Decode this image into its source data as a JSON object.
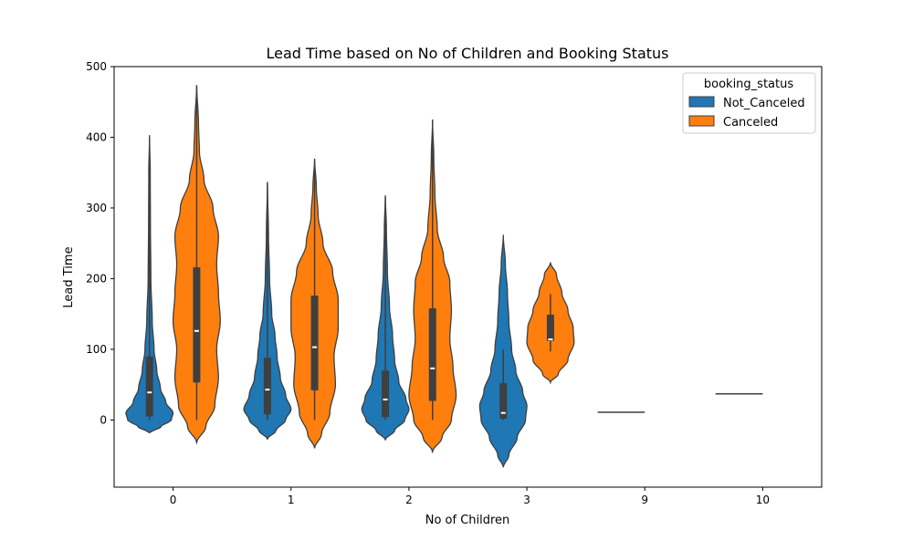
{
  "chart_data": {
    "type": "violin",
    "title": "Lead Time based on No of Children and Booking Status",
    "xlabel": "No of Children",
    "ylabel": "Lead Time",
    "ylim": [
      -95,
      500
    ],
    "yticks": [
      0,
      100,
      200,
      300,
      400,
      500
    ],
    "categories": [
      "0",
      "1",
      "2",
      "3",
      "9",
      "10"
    ],
    "grid": false,
    "legend": {
      "title": "booking_status",
      "placement": "top-right",
      "entries": [
        {
          "name": "Not_Canceled",
          "color": "#1f77b4"
        },
        {
          "name": "Canceled",
          "color": "#ff7f0e"
        }
      ]
    },
    "series": [
      {
        "name": "Not_Canceled",
        "color": "#1f77b4",
        "groups": [
          {
            "category": "0",
            "min": 0,
            "q1": 5,
            "median": 39,
            "q3": 90,
            "max": 400,
            "kde_min": -18,
            "kde_max": 403,
            "profile": [
              [
                -18,
                0
              ],
              [
                -10,
                12
              ],
              [
                0,
                24
              ],
              [
                10,
                26
              ],
              [
                25,
                18
              ],
              [
                45,
                12
              ],
              [
                70,
                8
              ],
              [
                100,
                5
              ],
              [
                140,
                3
              ],
              [
                200,
                1.5
              ],
              [
                280,
                1
              ],
              [
                350,
                0.8
              ],
              [
                403,
                0
              ]
            ]
          },
          {
            "category": "1",
            "min": 0,
            "q1": 8,
            "median": 43,
            "q3": 88,
            "max": 335,
            "kde_min": -27,
            "kde_max": 337,
            "profile": [
              [
                -27,
                0
              ],
              [
                -15,
                8
              ],
              [
                0,
                17
              ],
              [
                15,
                22
              ],
              [
                35,
                17
              ],
              [
                60,
                12
              ],
              [
                90,
                9
              ],
              [
                120,
                7
              ],
              [
                150,
                4
              ],
              [
                200,
                2
              ],
              [
                260,
                1
              ],
              [
                337,
                0
              ]
            ]
          },
          {
            "category": "2",
            "min": 0,
            "q1": 4,
            "median": 29,
            "q3": 70,
            "max": 315,
            "kde_min": -28,
            "kde_max": 318,
            "profile": [
              [
                -28,
                0
              ],
              [
                -15,
                9
              ],
              [
                0,
                19
              ],
              [
                15,
                23
              ],
              [
                30,
                20
              ],
              [
                55,
                13
              ],
              [
                85,
                9
              ],
              [
                120,
                7
              ],
              [
                160,
                4
              ],
              [
                210,
                2
              ],
              [
                270,
                1
              ],
              [
                318,
                0
              ]
            ]
          },
          {
            "category": "3",
            "min": 0,
            "q1": 2,
            "median": 10,
            "q3": 52,
            "max": 100,
            "kde_min": -67,
            "kde_max": 262,
            "profile": [
              [
                -67,
                0
              ],
              [
                -50,
                4
              ],
              [
                -25,
                10
              ],
              [
                0,
                16
              ],
              [
                20,
                17
              ],
              [
                40,
                14
              ],
              [
                70,
                9
              ],
              [
                100,
                6
              ],
              [
                140,
                4
              ],
              [
                180,
                3
              ],
              [
                220,
                1.5
              ],
              [
                262,
                0
              ]
            ]
          },
          {
            "category": "9",
            "min": 11,
            "q1": 11,
            "median": 11,
            "q3": 11,
            "max": 11,
            "single": true
          },
          {
            "category": "10",
            "min": 37,
            "q1": 37,
            "median": 37,
            "q3": 37,
            "max": 37,
            "single": true
          }
        ]
      },
      {
        "name": "Canceled",
        "color": "#ff7f0e",
        "groups": [
          {
            "category": "0",
            "min": 0,
            "q1": 53,
            "median": 126,
            "q3": 216,
            "max": 472,
            "kde_min": -32,
            "kde_max": 474,
            "profile": [
              [
                -32,
                0
              ],
              [
                -10,
                5
              ],
              [
                20,
                10
              ],
              [
                60,
                12
              ],
              [
                100,
                11
              ],
              [
                140,
                13
              ],
              [
                180,
                12
              ],
              [
                220,
                11
              ],
              [
                260,
                12
              ],
              [
                300,
                9
              ],
              [
                340,
                4
              ],
              [
                380,
                1.5
              ],
              [
                420,
                1
              ],
              [
                474,
                0
              ]
            ]
          },
          {
            "category": "1",
            "min": 0,
            "q1": 42,
            "median": 103,
            "q3": 176,
            "max": 368,
            "kde_min": -40,
            "kde_max": 370,
            "profile": [
              [
                -40,
                0
              ],
              [
                -20,
                5
              ],
              [
                10,
                11
              ],
              [
                50,
                15
              ],
              [
                90,
                14
              ],
              [
                130,
                17
              ],
              [
                170,
                17
              ],
              [
                210,
                13
              ],
              [
                250,
                6
              ],
              [
                290,
                2.5
              ],
              [
                330,
                1.2
              ],
              [
                370,
                0
              ]
            ]
          },
          {
            "category": "2",
            "min": 0,
            "q1": 27,
            "median": 73,
            "q3": 158,
            "max": 425,
            "kde_min": -45,
            "kde_max": 425,
            "profile": [
              [
                -45,
                0
              ],
              [
                -25,
                6
              ],
              [
                0,
                12
              ],
              [
                35,
                15
              ],
              [
                75,
                13
              ],
              [
                115,
                11
              ],
              [
                155,
                12
              ],
              [
                195,
                11
              ],
              [
                230,
                7
              ],
              [
                270,
                3
              ],
              [
                320,
                1.5
              ],
              [
                370,
                0.8
              ],
              [
                425,
                0
              ]
            ]
          },
          {
            "category": "3",
            "min": 97,
            "q1": 112,
            "median": 114,
            "q3": 149,
            "max": 178,
            "kde_min": 53,
            "kde_max": 223,
            "profile": [
              [
                53,
                0
              ],
              [
                65,
                9
              ],
              [
                85,
                20
              ],
              [
                110,
                27
              ],
              [
                130,
                26
              ],
              [
                155,
                20
              ],
              [
                180,
                13
              ],
              [
                205,
                7
              ],
              [
                223,
                0
              ]
            ]
          }
        ]
      }
    ]
  }
}
